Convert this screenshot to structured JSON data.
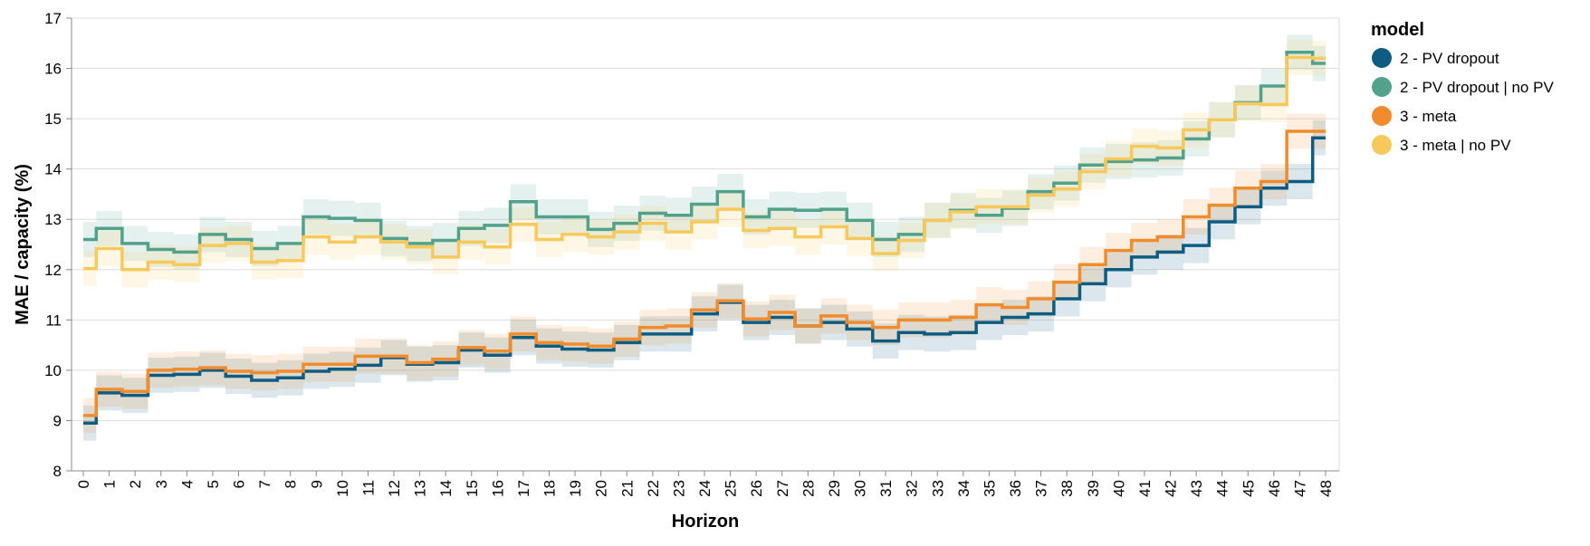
{
  "chart_data": {
    "type": "line",
    "step": true,
    "xlabel": "Horizon",
    "ylabel": "MAE / capacity (%)",
    "xlim": [
      0,
      48
    ],
    "ylim": [
      8,
      17
    ],
    "x_ticks": [
      0,
      1,
      2,
      3,
      4,
      5,
      6,
      7,
      8,
      9,
      10,
      11,
      12,
      13,
      14,
      15,
      16,
      17,
      18,
      19,
      20,
      21,
      22,
      23,
      24,
      25,
      26,
      27,
      28,
      29,
      30,
      31,
      32,
      33,
      34,
      35,
      36,
      37,
      38,
      39,
      40,
      41,
      42,
      43,
      44,
      45,
      46,
      47,
      48
    ],
    "y_ticks": [
      8,
      9,
      10,
      11,
      12,
      13,
      14,
      15,
      16,
      17
    ],
    "grid": "horizontal",
    "legend": {
      "title": "model",
      "position": "right"
    },
    "band_half_width": 0.35,
    "series": [
      {
        "name": "2 - PV dropout",
        "color": "#0e5c82",
        "values": [
          8.95,
          9.55,
          9.5,
          9.9,
          9.92,
          10.0,
          9.88,
          9.8,
          9.85,
          9.98,
          10.02,
          10.1,
          10.25,
          10.12,
          10.15,
          10.4,
          10.3,
          10.65,
          10.48,
          10.42,
          10.4,
          10.55,
          10.72,
          10.72,
          11.12,
          11.35,
          10.95,
          11.05,
          10.88,
          10.95,
          10.82,
          10.58,
          10.75,
          10.72,
          10.75,
          10.95,
          11.05,
          11.12,
          11.42,
          11.72,
          12.0,
          12.25,
          12.35,
          12.48,
          12.95,
          13.25,
          13.62,
          13.75,
          14.62
        ]
      },
      {
        "name": "2 - PV dropout | no PV",
        "color": "#52a18b",
        "values": [
          12.6,
          12.82,
          12.52,
          12.4,
          12.35,
          12.7,
          12.6,
          12.42,
          12.52,
          13.05,
          13.02,
          12.98,
          12.62,
          12.52,
          12.58,
          12.82,
          12.88,
          13.35,
          13.05,
          13.05,
          12.8,
          12.92,
          13.12,
          13.08,
          13.3,
          13.55,
          13.05,
          13.2,
          13.18,
          13.2,
          12.98,
          12.6,
          12.7,
          12.98,
          13.18,
          13.08,
          13.22,
          13.55,
          13.72,
          14.08,
          14.15,
          14.18,
          14.22,
          14.6,
          14.98,
          15.32,
          15.65,
          16.32,
          16.1
        ]
      },
      {
        "name": "3 - meta",
        "color": "#f08c2c",
        "values": [
          9.1,
          9.62,
          9.58,
          10.0,
          10.02,
          10.05,
          9.98,
          9.95,
          9.98,
          10.12,
          10.12,
          10.28,
          10.28,
          10.15,
          10.22,
          10.45,
          10.38,
          10.72,
          10.55,
          10.52,
          10.48,
          10.62,
          10.85,
          10.88,
          11.2,
          11.38,
          11.02,
          11.15,
          10.88,
          11.08,
          10.95,
          10.85,
          11.0,
          11.0,
          11.05,
          11.3,
          11.25,
          11.42,
          11.75,
          12.1,
          12.38,
          12.58,
          12.65,
          13.05,
          13.28,
          13.62,
          13.75,
          14.75,
          14.75
        ]
      },
      {
        "name": "3 - meta | no PV",
        "color": "#f6c95a",
        "values": [
          12.02,
          12.42,
          12.0,
          12.15,
          12.1,
          12.48,
          12.52,
          12.15,
          12.18,
          12.65,
          12.55,
          12.65,
          12.55,
          12.45,
          12.25,
          12.55,
          12.45,
          12.9,
          12.6,
          12.7,
          12.65,
          12.75,
          12.92,
          12.75,
          12.95,
          13.2,
          12.78,
          12.82,
          12.65,
          12.85,
          12.62,
          12.32,
          12.58,
          12.98,
          13.15,
          13.25,
          13.25,
          13.48,
          13.6,
          13.95,
          14.2,
          14.45,
          14.42,
          14.78,
          14.98,
          15.3,
          15.28,
          16.22,
          16.2
        ]
      }
    ]
  }
}
